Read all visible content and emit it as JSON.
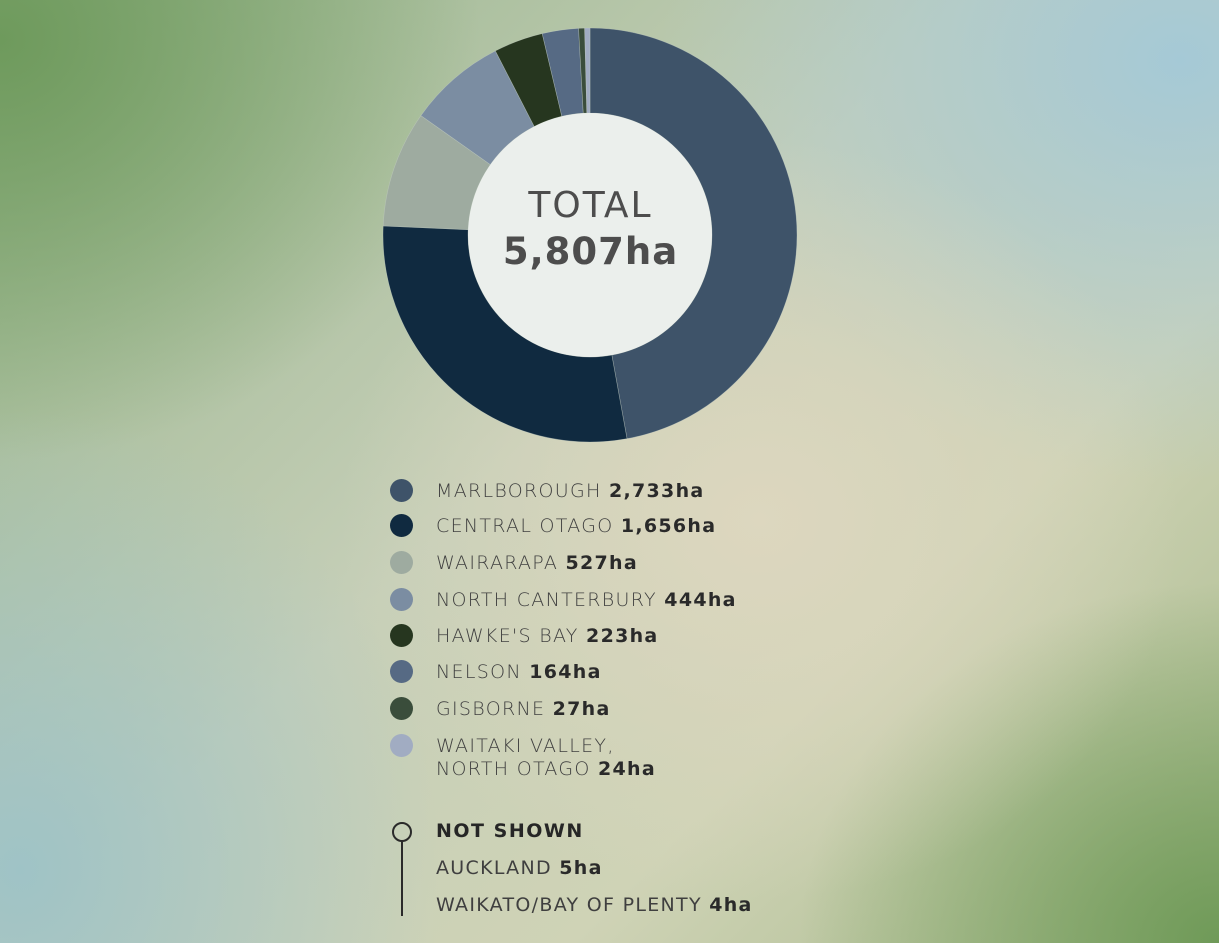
{
  "chart_data": {
    "type": "pie",
    "variant": "donut",
    "center_title": "TOTAL",
    "center_value": "5,807ha",
    "unit": "ha",
    "categories": [
      "MARLBOROUGH",
      "CENTRAL OTAGO",
      "WAIRARAPA",
      "NORTH CANTERBURY",
      "HAWKE'S BAY",
      "NELSON",
      "GISBORNE",
      "WAITAKI VALLEY, NORTH OTAGO"
    ],
    "values": [
      2733,
      1656,
      527,
      444,
      223,
      164,
      27,
      24
    ],
    "value_labels": [
      "2,733ha",
      "1,656ha",
      "527ha",
      "444ha",
      "223ha",
      "164ha",
      "27ha",
      "24ha"
    ],
    "colors": [
      "#3e5369",
      "#102a40",
      "#9eaba0",
      "#7b8da2",
      "#26361f",
      "#566a84",
      "#3a4d3b",
      "#a1acc2"
    ],
    "legend_placement": "bottom",
    "not_shown": {
      "title": "NOT SHOWN",
      "items": [
        {
          "label": "AUCKLAND",
          "value": "5ha"
        },
        {
          "label": "WAIKATO/BAY OF PLENTY",
          "value": "4ha"
        }
      ]
    }
  }
}
